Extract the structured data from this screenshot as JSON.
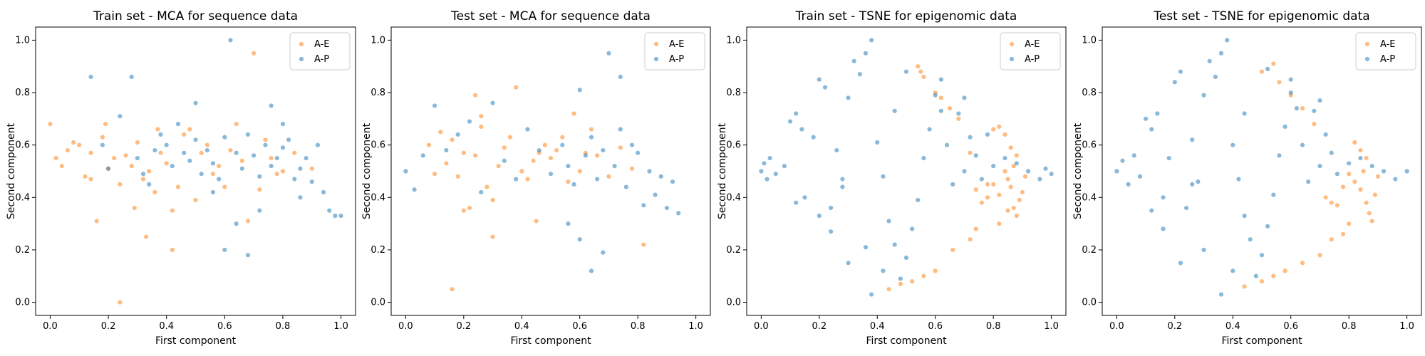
{
  "figure": {
    "colors": {
      "A-E": "#ff7f0e",
      "A-P": "#1f77b4",
      "axes_edge": "#000000",
      "legend_border": "#cccccc"
    }
  },
  "chart_data": [
    {
      "type": "scatter",
      "title": "Train set - MCA for sequence data",
      "xlabel": "First component",
      "ylabel": "Second component",
      "xlim": [
        -0.05,
        1.05
      ],
      "ylim": [
        -0.05,
        1.05
      ],
      "xticks": [
        "0.0",
        "0.2",
        "0.4",
        "0.6",
        "0.8",
        "1.0"
      ],
      "yticks": [
        "0.0",
        "0.2",
        "0.4",
        "0.6",
        "0.8",
        "1.0"
      ],
      "legend_position": "upper right",
      "grid": false,
      "series": [
        {
          "name": "A-E",
          "color": "#ff7f0e",
          "x": [
            0.0,
            0.02,
            0.04,
            0.06,
            0.08,
            0.1,
            0.12,
            0.14,
            0.16,
            0.18,
            0.2,
            0.22,
            0.24,
            0.26,
            0.28,
            0.3,
            0.32,
            0.34,
            0.36,
            0.38,
            0.4,
            0.42,
            0.44,
            0.46,
            0.48,
            0.5,
            0.52,
            0.54,
            0.56,
            0.58,
            0.6,
            0.62,
            0.64,
            0.66,
            0.68,
            0.7,
            0.72,
            0.74,
            0.76,
            0.78,
            0.8,
            0.84,
            0.9,
            0.24,
            0.42,
            0.14,
            0.19,
            0.29,
            0.33,
            0.37
          ],
          "y": [
            0.68,
            0.55,
            0.52,
            0.58,
            0.61,
            0.6,
            0.48,
            0.57,
            0.31,
            0.63,
            0.51,
            0.55,
            0.45,
            0.56,
            0.52,
            0.61,
            0.47,
            0.5,
            0.42,
            0.57,
            0.53,
            0.35,
            0.44,
            0.64,
            0.66,
            0.39,
            0.57,
            0.6,
            0.49,
            0.52,
            0.44,
            0.58,
            0.68,
            0.54,
            0.31,
            0.95,
            0.43,
            0.62,
            0.55,
            0.49,
            0.5,
            0.57,
            0.51,
            0.0,
            0.2,
            0.47,
            0.68,
            0.36,
            0.25,
            0.66
          ]
        },
        {
          "name": "A-P",
          "color": "#1f77b4",
          "x": [
            0.14,
            0.18,
            0.2,
            0.24,
            0.28,
            0.3,
            0.32,
            0.34,
            0.36,
            0.38,
            0.4,
            0.42,
            0.44,
            0.46,
            0.48,
            0.5,
            0.52,
            0.54,
            0.56,
            0.58,
            0.6,
            0.62,
            0.64,
            0.66,
            0.68,
            0.7,
            0.72,
            0.74,
            0.76,
            0.78,
            0.8,
            0.82,
            0.84,
            0.86,
            0.88,
            0.9,
            0.92,
            0.94,
            0.96,
            0.98,
            1.0,
            0.5,
            0.56,
            0.6,
            0.64,
            0.68,
            0.72,
            0.76,
            0.8,
            0.86
          ],
          "y": [
            0.86,
            0.6,
            0.51,
            0.71,
            0.86,
            0.55,
            0.49,
            0.45,
            0.58,
            0.64,
            0.6,
            0.52,
            0.68,
            0.57,
            0.54,
            0.62,
            0.49,
            0.58,
            0.53,
            0.47,
            0.63,
            1.0,
            0.57,
            0.51,
            0.64,
            0.56,
            0.48,
            0.6,
            0.52,
            0.55,
            0.59,
            0.62,
            0.47,
            0.51,
            0.55,
            0.46,
            0.6,
            0.42,
            0.35,
            0.33,
            0.33,
            0.76,
            0.42,
            0.2,
            0.3,
            0.18,
            0.35,
            0.75,
            0.68,
            0.4
          ]
        }
      ]
    },
    {
      "type": "scatter",
      "title": "Test set - MCA for sequence data",
      "xlabel": "First component",
      "ylabel": "Second component",
      "xlim": [
        -0.05,
        1.05
      ],
      "ylim": [
        -0.05,
        1.05
      ],
      "xticks": [
        "0.0",
        "0.2",
        "0.4",
        "0.6",
        "0.8",
        "1.0"
      ],
      "yticks": [
        "0.0",
        "0.2",
        "0.4",
        "0.6",
        "0.8",
        "1.0"
      ],
      "legend_position": "upper right",
      "grid": false,
      "series": [
        {
          "name": "A-E",
          "color": "#ff7f0e",
          "x": [
            0.08,
            0.1,
            0.12,
            0.14,
            0.16,
            0.18,
            0.2,
            0.22,
            0.24,
            0.26,
            0.28,
            0.3,
            0.32,
            0.34,
            0.36,
            0.38,
            0.4,
            0.42,
            0.44,
            0.46,
            0.48,
            0.5,
            0.52,
            0.54,
            0.56,
            0.58,
            0.6,
            0.62,
            0.64,
            0.66,
            0.7,
            0.74,
            0.78,
            0.82,
            0.16,
            0.3,
            0.45,
            0.24,
            0.2,
            0.26
          ],
          "y": [
            0.6,
            0.49,
            0.65,
            0.53,
            0.62,
            0.48,
            0.57,
            0.36,
            0.56,
            0.71,
            0.44,
            0.25,
            0.52,
            0.59,
            0.63,
            0.82,
            0.5,
            0.47,
            0.54,
            0.57,
            0.6,
            0.55,
            0.58,
            0.63,
            0.46,
            0.72,
            0.5,
            0.57,
            0.66,
            0.56,
            0.48,
            0.59,
            0.51,
            0.22,
            0.05,
            0.39,
            0.31,
            0.79,
            0.35,
            0.67
          ]
        },
        {
          "name": "A-P",
          "color": "#1f77b4",
          "x": [
            0.0,
            0.03,
            0.06,
            0.1,
            0.14,
            0.18,
            0.22,
            0.26,
            0.3,
            0.34,
            0.38,
            0.42,
            0.46,
            0.5,
            0.54,
            0.56,
            0.58,
            0.6,
            0.62,
            0.64,
            0.66,
            0.68,
            0.7,
            0.72,
            0.74,
            0.76,
            0.78,
            0.8,
            0.82,
            0.84,
            0.86,
            0.88,
            0.9,
            0.92,
            0.94,
            0.64,
            0.6,
            0.56,
            0.68,
            0.74
          ],
          "y": [
            0.5,
            0.43,
            0.56,
            0.75,
            0.58,
            0.64,
            0.69,
            0.42,
            0.76,
            0.54,
            0.47,
            0.66,
            0.58,
            0.49,
            0.6,
            0.52,
            0.45,
            0.81,
            0.56,
            0.63,
            0.47,
            0.58,
            0.95,
            0.52,
            0.66,
            0.44,
            0.6,
            0.57,
            0.37,
            0.5,
            0.41,
            0.48,
            0.36,
            0.46,
            0.34,
            0.12,
            0.24,
            0.3,
            0.19,
            0.86
          ]
        }
      ]
    },
    {
      "type": "scatter",
      "title": "Train set - TSNE for epigenomic data",
      "xlabel": "First component",
      "ylabel": "Second component",
      "xlim": [
        -0.05,
        1.05
      ],
      "ylim": [
        -0.05,
        1.05
      ],
      "xticks": [
        "0.0",
        "0.2",
        "0.4",
        "0.6",
        "0.8",
        "1.0"
      ],
      "yticks": [
        "0.0",
        "0.2",
        "0.4",
        "0.6",
        "0.8",
        "1.0"
      ],
      "legend_position": "upper right",
      "grid": false,
      "series": [
        {
          "name": "A-E",
          "color": "#ff7f0e",
          "x": [
            0.54,
            0.55,
            0.56,
            0.6,
            0.62,
            0.65,
            0.68,
            0.72,
            0.74,
            0.76,
            0.78,
            0.8,
            0.82,
            0.84,
            0.85,
            0.86,
            0.87,
            0.88,
            0.89,
            0.9,
            0.91,
            0.86,
            0.84,
            0.82,
            0.8,
            0.78,
            0.74,
            0.72,
            0.66,
            0.6,
            0.56,
            0.52,
            0.48,
            0.44,
            0.82,
            0.85,
            0.87,
            0.88
          ],
          "y": [
            0.9,
            0.88,
            0.86,
            0.8,
            0.78,
            0.74,
            0.7,
            0.57,
            0.43,
            0.38,
            0.4,
            0.45,
            0.41,
            0.5,
            0.47,
            0.44,
            0.36,
            0.33,
            0.39,
            0.42,
            0.48,
            0.59,
            0.64,
            0.67,
            0.66,
            0.45,
            0.28,
            0.24,
            0.2,
            0.12,
            0.1,
            0.08,
            0.07,
            0.05,
            0.3,
            0.35,
            0.52,
            0.56
          ]
        },
        {
          "name": "A-P",
          "color": "#1f77b4",
          "x": [
            0.0,
            0.01,
            0.02,
            0.03,
            0.05,
            0.08,
            0.1,
            0.12,
            0.14,
            0.15,
            0.18,
            0.2,
            0.22,
            0.24,
            0.26,
            0.28,
            0.3,
            0.32,
            0.34,
            0.36,
            0.38,
            0.4,
            0.42,
            0.44,
            0.46,
            0.48,
            0.5,
            0.52,
            0.54,
            0.56,
            0.58,
            0.6,
            0.62,
            0.64,
            0.66,
            0.68,
            0.7,
            0.72,
            0.74,
            0.76,
            0.8,
            0.84,
            0.88,
            0.92,
            0.96,
            0.98,
            1.0,
            0.38,
            0.42,
            0.36,
            0.3,
            0.24,
            0.2,
            0.12,
            0.28,
            0.46,
            0.5,
            0.62,
            0.7,
            0.78
          ],
          "y": [
            0.5,
            0.53,
            0.47,
            0.55,
            0.49,
            0.52,
            0.69,
            0.72,
            0.66,
            0.4,
            0.63,
            0.85,
            0.82,
            0.36,
            0.58,
            0.44,
            0.78,
            0.92,
            0.87,
            0.95,
            1.0,
            0.61,
            0.48,
            0.31,
            0.22,
            0.09,
            0.17,
            0.28,
            0.39,
            0.55,
            0.66,
            0.79,
            0.73,
            0.6,
            0.45,
            0.72,
            0.5,
            0.63,
            0.56,
            0.47,
            0.52,
            0.55,
            0.53,
            0.5,
            0.47,
            0.51,
            0.49,
            0.03,
            0.12,
            0.21,
            0.15,
            0.27,
            0.33,
            0.38,
            0.47,
            0.73,
            0.88,
            0.85,
            0.78,
            0.64
          ]
        }
      ]
    },
    {
      "type": "scatter",
      "title": "Test set - TSNE for epigenomic data",
      "xlabel": "First component",
      "ylabel": "Second component",
      "xlim": [
        -0.05,
        1.05
      ],
      "ylim": [
        -0.05,
        1.05
      ],
      "xticks": [
        "0.0",
        "0.2",
        "0.4",
        "0.6",
        "0.8",
        "1.0"
      ],
      "yticks": [
        "0.0",
        "0.2",
        "0.4",
        "0.6",
        "0.8",
        "1.0"
      ],
      "legend_position": "upper right",
      "grid": false,
      "series": [
        {
          "name": "A-E",
          "color": "#ff7f0e",
          "x": [
            0.5,
            0.54,
            0.56,
            0.6,
            0.64,
            0.68,
            0.72,
            0.74,
            0.76,
            0.78,
            0.8,
            0.82,
            0.84,
            0.85,
            0.86,
            0.87,
            0.88,
            0.89,
            0.9,
            0.84,
            0.82,
            0.78,
            0.74,
            0.7,
            0.64,
            0.58,
            0.54,
            0.5,
            0.44,
            0.86,
            0.8
          ],
          "y": [
            0.88,
            0.91,
            0.84,
            0.79,
            0.74,
            0.68,
            0.4,
            0.38,
            0.37,
            0.44,
            0.49,
            0.46,
            0.43,
            0.5,
            0.38,
            0.34,
            0.31,
            0.41,
            0.48,
            0.58,
            0.61,
            0.26,
            0.24,
            0.18,
            0.15,
            0.12,
            0.1,
            0.08,
            0.06,
            0.55,
            0.3
          ]
        },
        {
          "name": "A-P",
          "color": "#1f77b4",
          "x": [
            0.0,
            0.02,
            0.04,
            0.06,
            0.08,
            0.1,
            0.12,
            0.14,
            0.16,
            0.18,
            0.2,
            0.22,
            0.24,
            0.26,
            0.28,
            0.3,
            0.32,
            0.34,
            0.36,
            0.38,
            0.4,
            0.42,
            0.44,
            0.46,
            0.48,
            0.5,
            0.52,
            0.54,
            0.56,
            0.58,
            0.6,
            0.62,
            0.64,
            0.66,
            0.68,
            0.7,
            0.72,
            0.74,
            0.76,
            0.8,
            0.84,
            0.88,
            0.92,
            0.96,
            1.0,
            0.36,
            0.4,
            0.3,
            0.22,
            0.16,
            0.12,
            0.26,
            0.44,
            0.52,
            0.6,
            0.7
          ],
          "y": [
            0.5,
            0.54,
            0.45,
            0.56,
            0.48,
            0.7,
            0.66,
            0.72,
            0.4,
            0.55,
            0.84,
            0.88,
            0.36,
            0.62,
            0.46,
            0.79,
            0.92,
            0.86,
            0.95,
            1.0,
            0.6,
            0.47,
            0.33,
            0.24,
            0.1,
            0.18,
            0.29,
            0.41,
            0.56,
            0.67,
            0.8,
            0.74,
            0.6,
            0.46,
            0.73,
            0.52,
            0.64,
            0.57,
            0.49,
            0.53,
            0.55,
            0.52,
            0.5,
            0.47,
            0.5,
            0.03,
            0.12,
            0.2,
            0.15,
            0.28,
            0.35,
            0.45,
            0.72,
            0.89,
            0.85,
            0.77
          ]
        }
      ]
    }
  ]
}
